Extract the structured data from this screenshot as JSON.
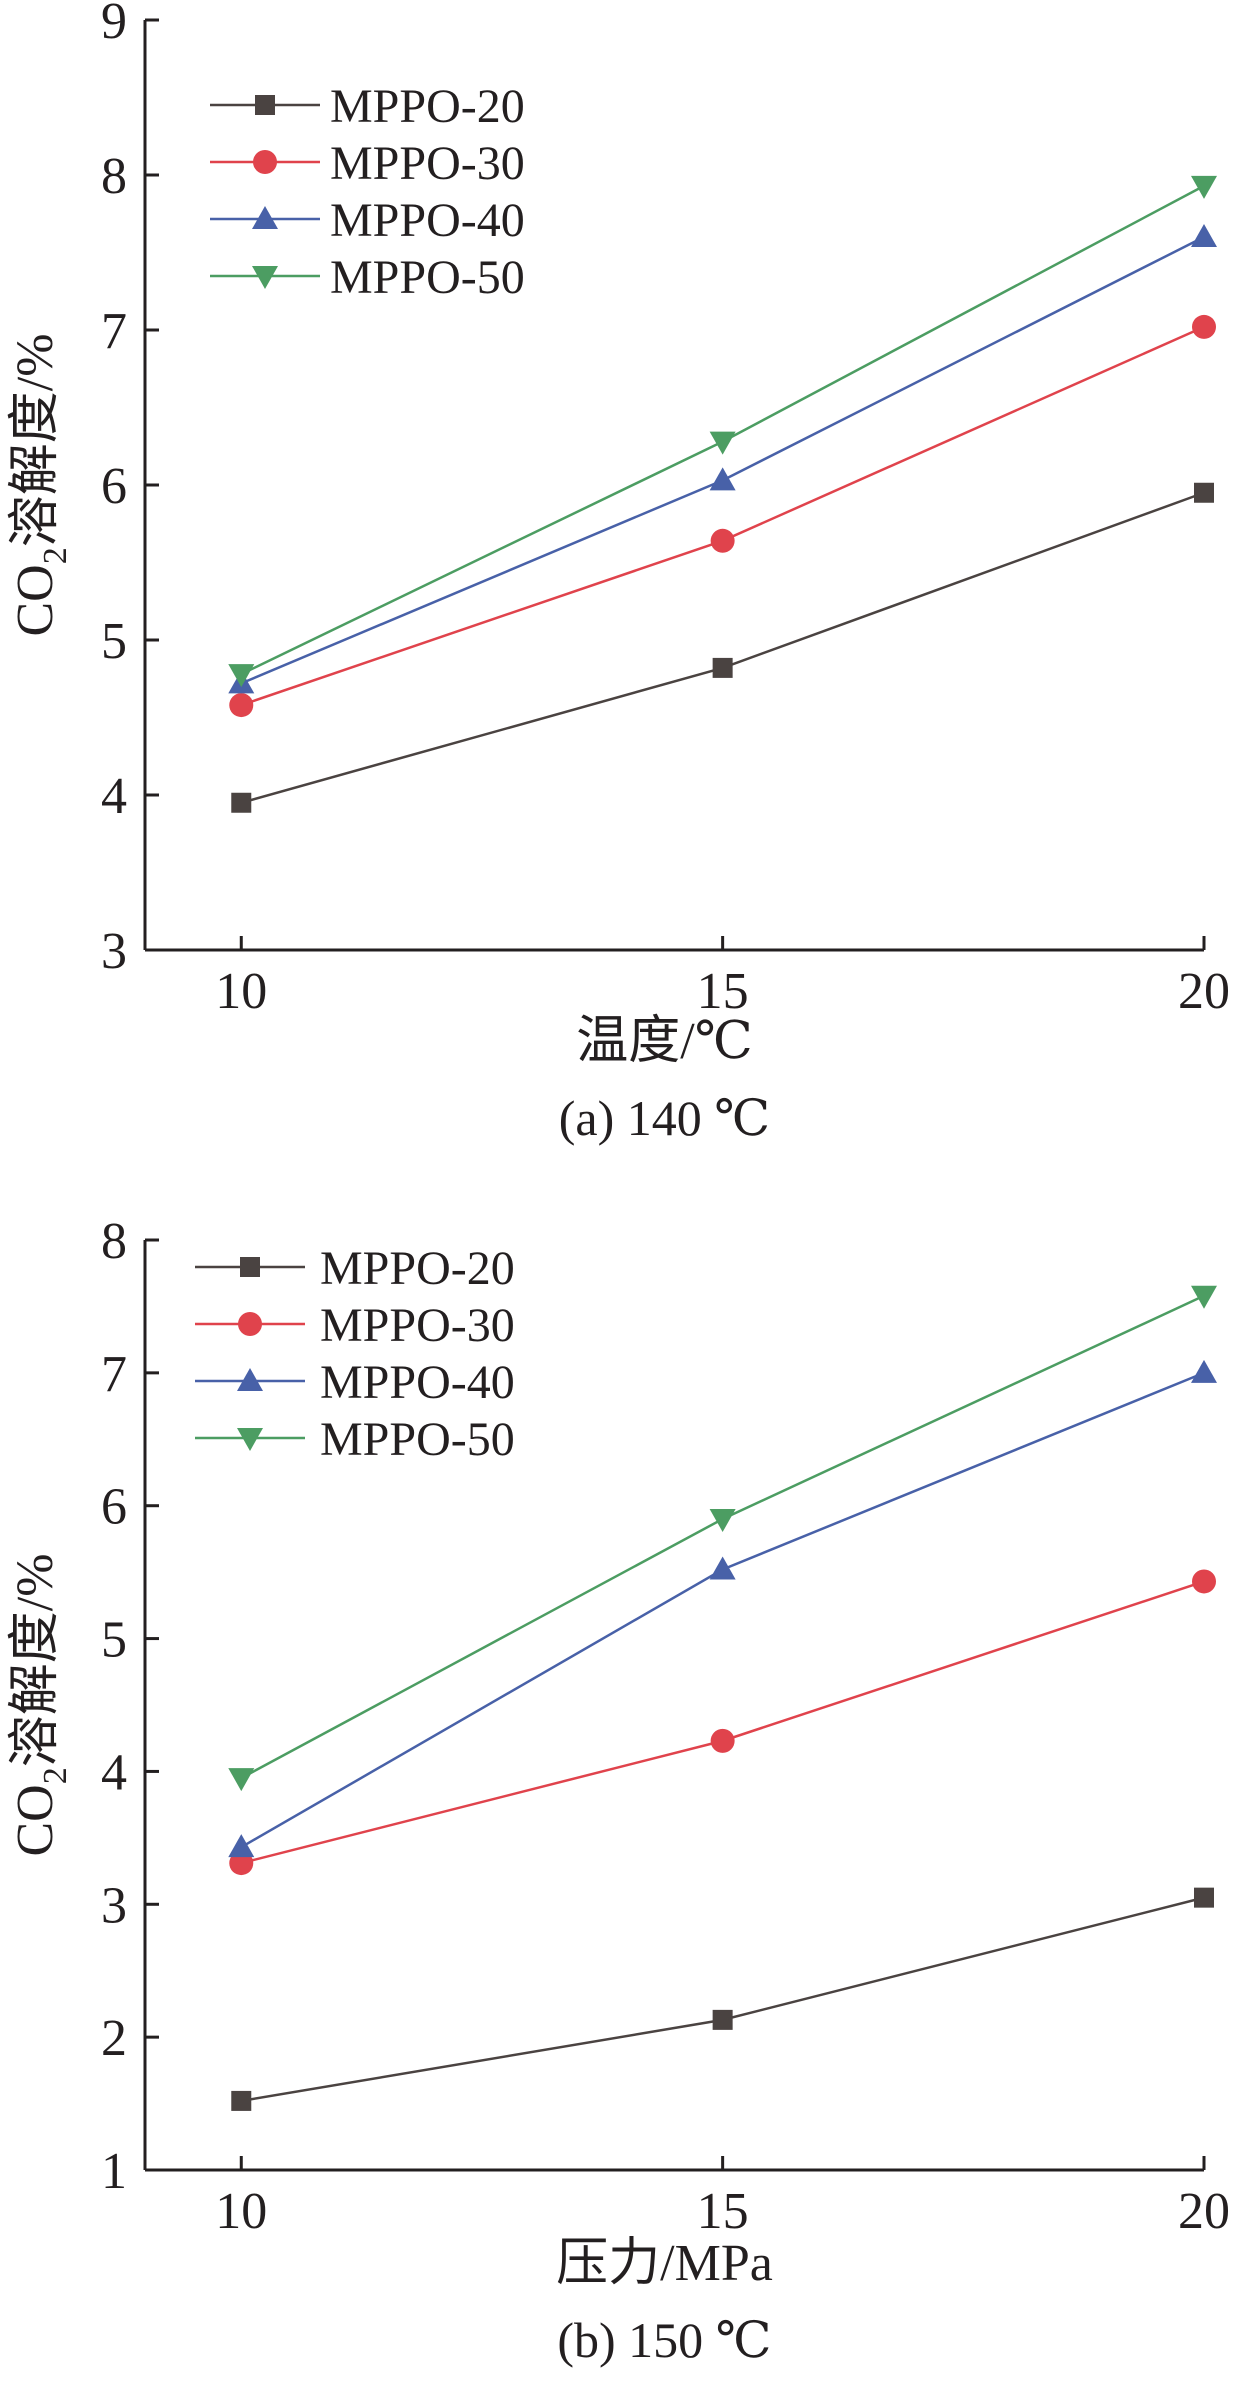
{
  "chart_data": [
    {
      "type": "line",
      "x": [
        10,
        15,
        20
      ],
      "xlabel": "温度/℃",
      "ylabel_main": "CO",
      "ylabel_sub": "2",
      "ylabel_rest": "溶解度/%",
      "caption": "(a) 140 ℃",
      "xlim": [
        9,
        20
      ],
      "ylim": [
        3,
        9
      ],
      "xticks": [
        10,
        15,
        20
      ],
      "yticks": [
        3,
        4,
        5,
        6,
        7,
        8,
        9
      ],
      "legend_position": "top-left",
      "series": [
        {
          "name": "MPPO-20",
          "values": [
            3.95,
            4.82,
            5.95
          ],
          "color": "#4a4341",
          "marker": "square"
        },
        {
          "name": "MPPO-30",
          "values": [
            4.58,
            5.64,
            7.02
          ],
          "color": "#e0434c",
          "marker": "circle"
        },
        {
          "name": "MPPO-40",
          "values": [
            4.72,
            6.03,
            7.6
          ],
          "color": "#4861a8",
          "marker": "triangle-up"
        },
        {
          "name": "MPPO-50",
          "values": [
            4.78,
            6.28,
            7.93
          ],
          "color": "#4c9d62",
          "marker": "triangle-down"
        }
      ]
    },
    {
      "type": "line",
      "x": [
        10,
        15,
        20
      ],
      "xlabel": "压力/MPa",
      "ylabel_main": "CO",
      "ylabel_sub": "2",
      "ylabel_rest": "溶解度/%",
      "caption": "(b) 150 ℃",
      "xlim": [
        9,
        20
      ],
      "ylim": [
        1,
        8
      ],
      "xticks": [
        10,
        15,
        20
      ],
      "yticks": [
        1,
        2,
        3,
        4,
        5,
        6,
        7,
        8
      ],
      "legend_position": "top-left",
      "series": [
        {
          "name": "MPPO-20",
          "values": [
            1.52,
            2.13,
            3.05
          ],
          "color": "#4a4341",
          "marker": "square"
        },
        {
          "name": "MPPO-30",
          "values": [
            3.31,
            4.23,
            5.43
          ],
          "color": "#e0434c",
          "marker": "circle"
        },
        {
          "name": "MPPO-40",
          "values": [
            3.43,
            5.52,
            7.0
          ],
          "color": "#4861a8",
          "marker": "triangle-up"
        },
        {
          "name": "MPPO-50",
          "values": [
            3.95,
            5.9,
            7.58
          ],
          "color": "#4c9d62",
          "marker": "triangle-down"
        }
      ]
    }
  ]
}
